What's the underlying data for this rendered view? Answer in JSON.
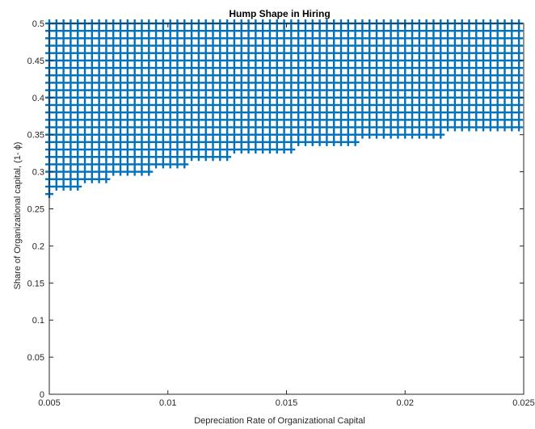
{
  "chart_data": {
    "type": "scatter",
    "title": "Hump Shape in Hiring",
    "xlabel": "Depreciation Rate of Organizational Capital",
    "ylabel": "Share of Organizational capital, (1- ϕ)",
    "xlim": [
      0.005,
      0.025
    ],
    "ylim": [
      0,
      0.5
    ],
    "xticks": [
      "0.005",
      "0.01",
      "0.015",
      "0.02",
      "0.025"
    ],
    "yticks": [
      "0",
      "0.05",
      "0.1",
      "0.15",
      "0.2",
      "0.25",
      "0.3",
      "0.35",
      "0.4",
      "0.45",
      "0.5"
    ],
    "grid": false,
    "legend": "none",
    "marker": "+",
    "marker_color": "#0072BD",
    "x_step": 0.0003,
    "y_step": 0.01,
    "y_max": 0.5,
    "series": [
      {
        "x": [
          0.005,
          0.0053,
          0.0056,
          0.0059,
          0.0062,
          0.0065,
          0.0068,
          0.0071,
          0.0074,
          0.0077,
          0.008,
          0.0083,
          0.0086,
          0.0089,
          0.0092,
          0.0095,
          0.0098,
          0.0101,
          0.0104,
          0.0107,
          0.011,
          0.0113,
          0.0116,
          0.0119,
          0.0122,
          0.0125,
          0.0128,
          0.0131,
          0.0134,
          0.0137,
          0.014,
          0.0143,
          0.0146,
          0.0149,
          0.0152,
          0.0155,
          0.0158,
          0.0161,
          0.0164,
          0.0167,
          0.017,
          0.0173,
          0.0176,
          0.0179,
          0.0182,
          0.0185,
          0.0188,
          0.0191,
          0.0194,
          0.0197,
          0.02,
          0.0203,
          0.0206,
          0.0209,
          0.0212,
          0.0215,
          0.0218,
          0.0221,
          0.0224,
          0.0227,
          0.023,
          0.0233,
          0.0236,
          0.0239,
          0.0242,
          0.0245,
          0.0248
        ],
        "y_min": [
          0.27,
          0.28,
          0.28,
          0.28,
          0.28,
          0.29,
          0.29,
          0.29,
          0.29,
          0.3,
          0.3,
          0.3,
          0.3,
          0.3,
          0.3,
          0.31,
          0.31,
          0.31,
          0.31,
          0.31,
          0.32,
          0.32,
          0.32,
          0.32,
          0.32,
          0.32,
          0.33,
          0.33,
          0.33,
          0.33,
          0.33,
          0.33,
          0.33,
          0.33,
          0.33,
          0.34,
          0.34,
          0.34,
          0.34,
          0.34,
          0.34,
          0.34,
          0.34,
          0.34,
          0.35,
          0.35,
          0.35,
          0.35,
          0.35,
          0.35,
          0.35,
          0.35,
          0.35,
          0.35,
          0.35,
          0.35,
          0.36,
          0.36,
          0.36,
          0.36,
          0.36,
          0.36,
          0.36,
          0.36,
          0.36,
          0.36,
          0.36
        ]
      }
    ]
  }
}
